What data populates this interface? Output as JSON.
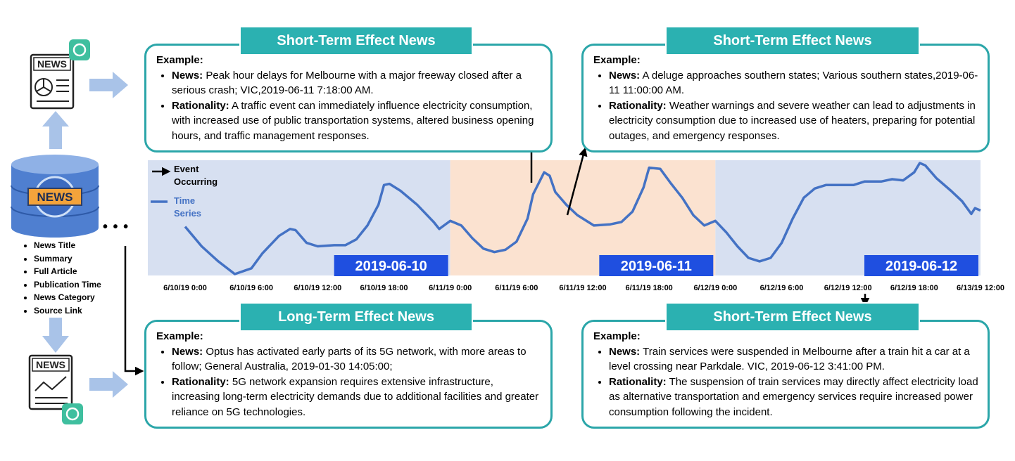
{
  "sources": {
    "icon_label": "NEWS",
    "fields": [
      "News Title",
      "Summary",
      "Full Article",
      "Publication Time",
      "News Category",
      "Source Link"
    ],
    "ellipsis": "• • •"
  },
  "boxes": [
    {
      "title": "Short-Term Effect News",
      "example_label": "Example:",
      "news_label": "News:",
      "news": "Peak hour delays for Melbourne with a major freeway closed after a serious crash; VIC,2019-06-11  7:18:00 AM.",
      "rationality_label": "Rationality:",
      "rationality": "A traffic event can immediately influence electricity consumption, with increased use of public transportation systems, altered business opening hours, and traffic management responses."
    },
    {
      "title": "Short-Term Effect News",
      "example_label": "Example:",
      "news_label": "News:",
      "news": "A deluge approaches southern states; Various southern states,2019-06-11  11:00:00 AM.",
      "rationality_label": "Rationality:",
      "rationality": "Weather warnings and severe weather can lead to adjustments in electricity consumption due to increased use of heaters, preparing for potential outages, and emergency responses."
    },
    {
      "title": "Long-Term Effect News",
      "example_label": "Example:",
      "news_label": "News:",
      "news": "Optus has activated early parts of its 5G network, with more areas to follow; General Australia, 2019-01-30 14:05:00;",
      "rationality_label": "Rationality:",
      "rationality": "5G network expansion requires extensive infrastructure, increasing long-term electricity demands due to additional facilities and greater reliance on 5G technologies."
    },
    {
      "title": "Short-Term Effect News",
      "example_label": "Example:",
      "news_label": "News:",
      "news": "Train services were suspended in Melbourne after a train hit a car at a level crossing near Parkdale. VIC, 2019-06-12  3:41:00 PM.",
      "rationality_label": "Rationality:",
      "rationality": "The suspension of train services may directly affect electricity load as alternative transportation and emergency services require increased power consumption following the incident."
    }
  ],
  "chart_data": {
    "type": "line",
    "event_label": "Event Occurring",
    "x": [
      "6/10/19 0:00",
      "6/10/19 1:30",
      "6/10/19 3:00",
      "6/10/19 4:30",
      "6/10/19 6:00",
      "6/10/19 7:00",
      "6/10/19 8:30",
      "6/10/19 9:30",
      "6/10/19 10:00",
      "6/10/19 11:00",
      "6/10/19 12:00",
      "6/10/19 13:30",
      "6/10/19 14:30",
      "6/10/19 15:30",
      "6/10/19 16:30",
      "6/10/19 17:30",
      "6/10/19 18:00",
      "6/10/19 18:30",
      "6/10/19 19:30",
      "6/10/19 21:00",
      "6/10/19 22:30",
      "6/10/19 23:00",
      "6/11/19 0:00",
      "6/11/19 1:00",
      "6/11/19 2:00",
      "6/11/19 3:00",
      "6/11/19 4:00",
      "6/11/19 5:00",
      "6/11/19 6:00",
      "6/11/19 7:00",
      "6/11/19 7:30",
      "6/11/19 8:30",
      "6/11/19 9:00",
      "6/11/19 9:30",
      "6/11/19 10:30",
      "6/11/19 11:30",
      "6/11/19 13:00",
      "6/11/19 14:30",
      "6/11/19 15:30",
      "6/11/19 16:30",
      "6/11/19 17:30",
      "6/11/19 18:00",
      "6/11/19 19:00",
      "6/11/19 20:00",
      "6/11/19 21:00",
      "6/11/19 22:00",
      "6/11/19 23:00",
      "6/12/19 0:00",
      "6/12/19 1:00",
      "6/12/19 2:00",
      "6/12/19 3:00",
      "6/12/19 4:00",
      "6/12/19 5:00",
      "6/12/19 6:00",
      "6/12/19 7:00",
      "6/12/19 8:00",
      "6/12/19 9:00",
      "6/12/19 10:00",
      "6/12/19 11:00",
      "6/12/19 12:30",
      "6/12/19 13:30",
      "6/12/19 15:00",
      "6/12/19 16:00",
      "6/12/19 17:00",
      "6/12/19 18:00",
      "6/12/19 19:30",
      "6/12/19 21:00",
      "6/13/19 0:00",
      "6/13/19 4:00",
      "6/13/19 7:00",
      "6/13/19 9:30",
      "6/13/19 10:30",
      "6/13/19 12:00"
    ],
    "series": [
      {
        "name": "Time Series",
        "color": "#4472c4",
        "values": [
          43,
          26,
          13,
          2,
          7,
          20,
          35,
          41,
          40,
          29,
          26,
          27,
          27,
          32,
          44,
          62,
          79,
          80,
          74,
          62,
          47,
          41,
          48,
          44,
          33,
          24,
          21,
          23,
          30,
          50,
          71,
          90,
          87,
          73,
          62,
          53,
          44,
          45,
          47,
          56,
          77,
          94,
          93,
          80,
          68,
          53,
          44,
          48,
          38,
          26,
          16,
          13,
          16,
          29,
          50,
          68,
          76,
          79,
          79,
          79,
          82,
          82,
          84,
          83,
          90,
          98,
          96,
          85,
          74,
          65,
          54,
          59,
          57
        ]
      }
    ],
    "xlim": [
      "6/10/19 0:00",
      "6/13/19 12:00"
    ],
    "xticks": [
      "6/10/19 0:00",
      "6/10/19 6:00",
      "6/10/19 12:00",
      "6/10/19 18:00",
      "6/11/19 0:00",
      "6/11/19 6:00",
      "6/11/19 12:00",
      "6/11/19 18:00",
      "6/12/19 0:00",
      "6/12/19 6:00",
      "6/12/19 12:00",
      "6/12/19 18:00",
      "6/13/19 12:00"
    ],
    "regions": [
      {
        "label": "2019-06-10",
        "color": "#d7e0f1"
      },
      {
        "label": "2019-06-11",
        "color": "#fbe2d0"
      },
      {
        "label": "2019-06-12",
        "color": "#d7e0f1"
      }
    ],
    "region_label_color": "#1f4fe0"
  }
}
